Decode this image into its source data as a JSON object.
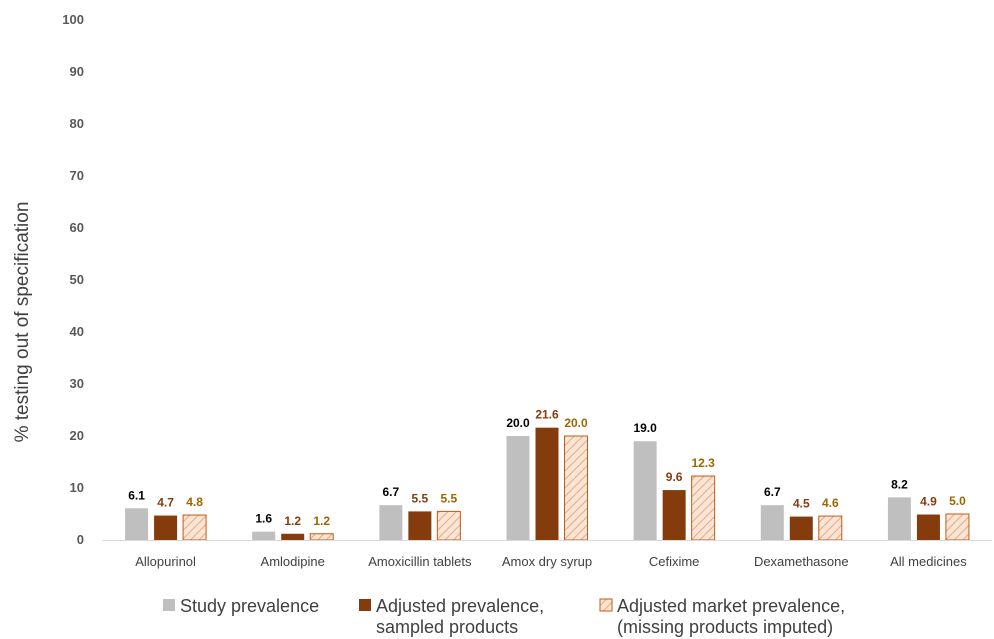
{
  "chart_data": {
    "type": "bar",
    "ylabel": "% testing out of specification",
    "xlabel": "",
    "title": "",
    "ylim": [
      0,
      100
    ],
    "yticks": [
      0,
      10,
      20,
      30,
      40,
      50,
      60,
      70,
      80,
      90,
      100
    ],
    "grid": false,
    "legend_position": "bottom",
    "categories": [
      "Allopurinol",
      "Amlodipine",
      "Amoxicillin tablets",
      "Amox dry syrup",
      "Cefixime",
      "Dexamethasone",
      "All medicines"
    ],
    "series": [
      {
        "name": "Study prevalence",
        "values": [
          6.1,
          1.6,
          6.7,
          20.0,
          19.0,
          6.7,
          8.2
        ],
        "labels": [
          "6.1",
          "1.6",
          "6.7",
          "20.0",
          "19.0",
          "6.7",
          "8.2"
        ],
        "color": "#bfbfbf",
        "label_color": "#000000",
        "pattern": "solid"
      },
      {
        "name": "Adjusted prevalence, sampled products",
        "legend_lines": [
          "Adjusted prevalence,",
          "sampled products"
        ],
        "values": [
          4.7,
          1.2,
          5.5,
          21.6,
          9.6,
          4.5,
          4.9
        ],
        "labels": [
          "4.7",
          "1.2",
          "5.5",
          "21.6",
          "9.6",
          "4.5",
          "4.9"
        ],
        "color": "#843c0c",
        "label_color": "#843c0c",
        "pattern": "solid"
      },
      {
        "name": "Adjusted market prevalence, (missing products imputed)",
        "legend_lines": [
          "Adjusted market prevalence,",
          "(missing products imputed)"
        ],
        "values": [
          4.8,
          1.2,
          5.5,
          20.0,
          12.3,
          4.6,
          5.0
        ],
        "labels": [
          "4.8",
          "1.2",
          "5.5",
          "20.0",
          "12.3",
          "4.6",
          "5.0"
        ],
        "color": "#c55a11",
        "label_color": "#9c6500",
        "pattern": "hatched"
      }
    ]
  }
}
